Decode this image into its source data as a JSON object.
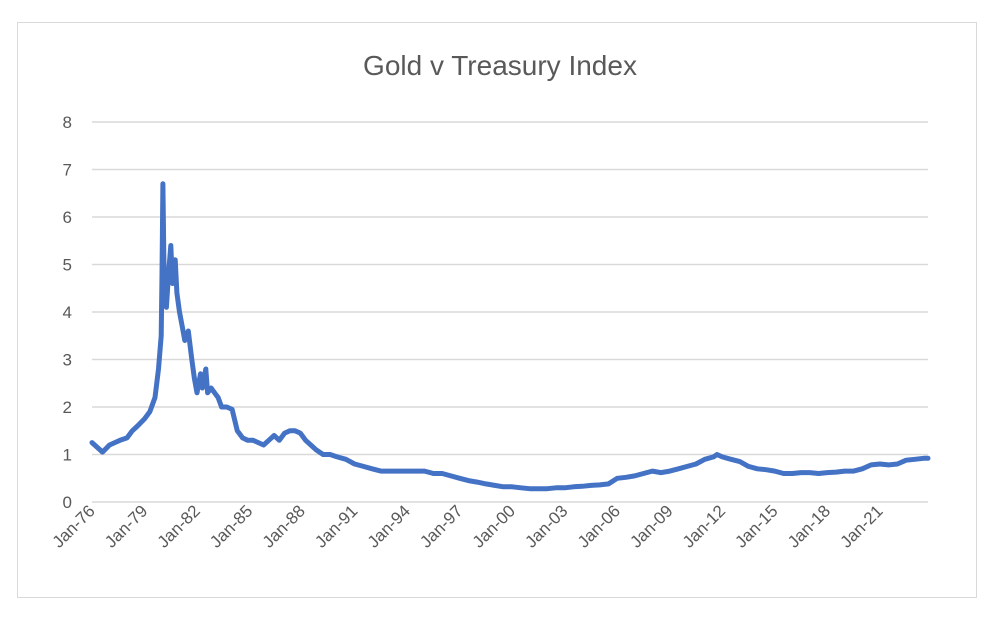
{
  "chart_data": {
    "type": "line",
    "title": "Gold v Treasury Index",
    "xlabel": "",
    "ylabel": "",
    "ylim": [
      0,
      8
    ],
    "yticks": [
      0,
      1,
      2,
      3,
      4,
      5,
      6,
      7,
      8
    ],
    "xlim": [
      1976.0,
      2023.75
    ],
    "xtick_labels": [
      "Jan-76",
      "Jan-79",
      "Jan-82",
      "Jan-85",
      "Jan-88",
      "Jan-91",
      "Jan-94",
      "Jan-97",
      "Jan-00",
      "Jan-03",
      "Jan-06",
      "Jan-09",
      "Jan-12",
      "Jan-15",
      "Jan-18",
      "Jan-21"
    ],
    "xtick_years": [
      1976,
      1979,
      1982,
      1985,
      1988,
      1991,
      1994,
      1997,
      2000,
      2003,
      2006,
      2009,
      2012,
      2015,
      2018,
      2021
    ],
    "grid": "horizontal",
    "legend": "none",
    "line_color": "#4472c4",
    "series": [
      {
        "x": [
          1976.0,
          1976.3,
          1976.6,
          1977.0,
          1977.3,
          1977.6,
          1978.0,
          1978.3,
          1978.6,
          1979.0,
          1979.3,
          1979.6,
          1979.8,
          1979.95,
          1980.0,
          1980.05,
          1980.1,
          1980.15,
          1980.25,
          1980.35,
          1980.5,
          1980.6,
          1980.75,
          1980.85,
          1981.0,
          1981.15,
          1981.3,
          1981.5,
          1981.7,
          1981.85,
          1982.0,
          1982.2,
          1982.3,
          1982.5,
          1982.6,
          1982.8,
          1983.0,
          1983.2,
          1983.4,
          1983.7,
          1984.0,
          1984.3,
          1984.6,
          1984.9,
          1985.2,
          1985.5,
          1985.8,
          1986.1,
          1986.4,
          1986.7,
          1987.0,
          1987.3,
          1987.6,
          1987.9,
          1988.2,
          1988.5,
          1988.8,
          1989.2,
          1989.6,
          1990.0,
          1990.5,
          1991.0,
          1991.5,
          1992.0,
          1992.5,
          1993.0,
          1993.5,
          1994.0,
          1994.5,
          1995.0,
          1995.5,
          1996.0,
          1996.5,
          1997.0,
          1997.5,
          1998.0,
          1998.5,
          1999.0,
          1999.5,
          2000.0,
          2000.5,
          2001.0,
          2001.5,
          2002.0,
          2002.5,
          2003.0,
          2003.5,
          2004.0,
          2004.5,
          2005.0,
          2005.5,
          2006.0,
          2006.5,
          2007.0,
          2007.5,
          2008.0,
          2008.5,
          2009.0,
          2009.5,
          2010.0,
          2010.5,
          2011.0,
          2011.5,
          2011.7,
          2012.0,
          2012.5,
          2013.0,
          2013.5,
          2014.0,
          2014.5,
          2015.0,
          2015.5,
          2016.0,
          2016.5,
          2017.0,
          2017.5,
          2018.0,
          2018.5,
          2019.0,
          2019.5,
          2020.0,
          2020.5,
          2021.0,
          2021.5,
          2022.0,
          2022.5,
          2023.0,
          2023.5,
          2023.75
        ],
        "y": [
          1.25,
          1.15,
          1.05,
          1.2,
          1.25,
          1.3,
          1.35,
          1.5,
          1.6,
          1.75,
          1.9,
          2.2,
          2.8,
          3.5,
          4.8,
          6.7,
          5.2,
          4.3,
          4.1,
          4.7,
          5.4,
          4.6,
          5.1,
          4.4,
          4.0,
          3.7,
          3.4,
          3.6,
          3.0,
          2.6,
          2.3,
          2.7,
          2.4,
          2.8,
          2.3,
          2.4,
          2.3,
          2.2,
          2.0,
          2.0,
          1.95,
          1.5,
          1.35,
          1.3,
          1.3,
          1.25,
          1.2,
          1.3,
          1.4,
          1.3,
          1.45,
          1.5,
          1.5,
          1.45,
          1.3,
          1.2,
          1.1,
          1.0,
          1.0,
          0.95,
          0.9,
          0.8,
          0.75,
          0.7,
          0.65,
          0.65,
          0.65,
          0.65,
          0.65,
          0.65,
          0.6,
          0.6,
          0.55,
          0.5,
          0.45,
          0.42,
          0.38,
          0.35,
          0.32,
          0.32,
          0.3,
          0.28,
          0.28,
          0.28,
          0.3,
          0.3,
          0.32,
          0.33,
          0.35,
          0.36,
          0.38,
          0.5,
          0.52,
          0.55,
          0.6,
          0.65,
          0.62,
          0.65,
          0.7,
          0.75,
          0.8,
          0.9,
          0.95,
          1.0,
          0.95,
          0.9,
          0.85,
          0.75,
          0.7,
          0.68,
          0.65,
          0.6,
          0.6,
          0.62,
          0.62,
          0.6,
          0.62,
          0.63,
          0.65,
          0.65,
          0.7,
          0.78,
          0.8,
          0.78,
          0.8,
          0.88,
          0.9,
          0.92,
          0.92
        ]
      }
    ]
  }
}
